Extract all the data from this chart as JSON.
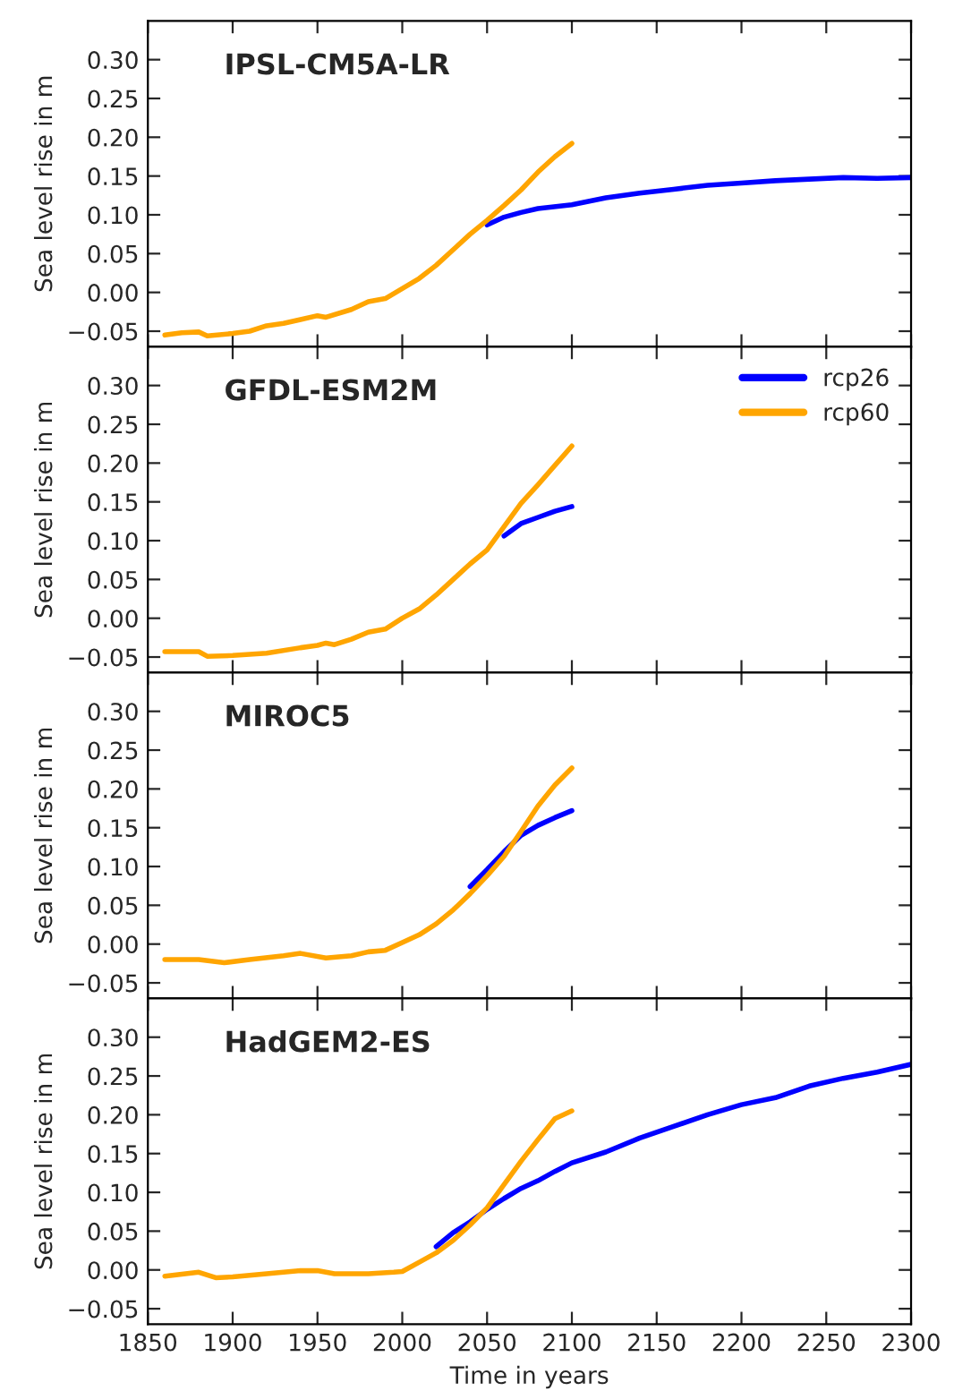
{
  "chart_data": [
    {
      "type": "line",
      "title": "IPSL-CM5A-LR",
      "ylabel": "Sea level rise in m",
      "xlim": [
        1850,
        2300
      ],
      "xticks": [
        1850,
        1900,
        1950,
        2000,
        2050,
        2100,
        2150,
        2200,
        2250,
        2300
      ],
      "ylim": [
        -0.07,
        0.35
      ],
      "yticks": [
        {
          "value": -0.05,
          "label": "−0.05"
        },
        {
          "value": 0,
          "label": "0.00"
        },
        {
          "value": 0.05,
          "label": "0.05"
        },
        {
          "value": 0.1,
          "label": "0.10"
        },
        {
          "value": 0.15,
          "label": "0.15"
        },
        {
          "value": 0.2,
          "label": "0.20"
        },
        {
          "value": 0.25,
          "label": "0.25"
        },
        {
          "value": 0.3,
          "label": "0.30"
        }
      ],
      "tick_labels": "y",
      "grid": false,
      "legend": false,
      "series": [
        {
          "color": "#0000ff",
          "x": [
            2050,
            2060,
            2070,
            2080,
            2100,
            2120,
            2140,
            2160,
            2180,
            2200,
            2220,
            2240,
            2260,
            2280,
            2300
          ],
          "values": [
            0.087,
            0.097,
            0.103,
            0.108,
            0.113,
            0.122,
            0.128,
            0.133,
            0.138,
            0.141,
            0.144,
            0.146,
            0.148,
            0.147,
            0.148
          ]
        },
        {
          "color": "#ffa500",
          "x": [
            1860,
            1870,
            1880,
            1885,
            1900,
            1910,
            1920,
            1930,
            1940,
            1950,
            1955,
            1970,
            1980,
            1990,
            2000,
            2010,
            2020,
            2030,
            2040,
            2050,
            2060,
            2070,
            2080,
            2090,
            2100
          ],
          "values": [
            -0.055,
            -0.052,
            -0.051,
            -0.056,
            -0.053,
            -0.05,
            -0.043,
            -0.04,
            -0.035,
            -0.03,
            -0.032,
            -0.022,
            -0.012,
            -0.008,
            0.005,
            0.018,
            0.035,
            0.055,
            0.075,
            0.093,
            0.112,
            0.132,
            0.155,
            0.175,
            0.192
          ]
        }
      ]
    },
    {
      "type": "line",
      "title": "GFDL-ESM2M",
      "ylabel": "Sea level rise in m",
      "xlim": [
        1850,
        2300
      ],
      "xticks": [
        1850,
        1900,
        1950,
        2000,
        2050,
        2100,
        2150,
        2200,
        2250,
        2300
      ],
      "ylim": [
        -0.07,
        0.35
      ],
      "yticks": [
        {
          "value": -0.05,
          "label": "−0.05"
        },
        {
          "value": 0,
          "label": "0.00"
        },
        {
          "value": 0.05,
          "label": "0.05"
        },
        {
          "value": 0.1,
          "label": "0.10"
        },
        {
          "value": 0.15,
          "label": "0.15"
        },
        {
          "value": 0.2,
          "label": "0.20"
        },
        {
          "value": 0.25,
          "label": "0.25"
        },
        {
          "value": 0.3,
          "label": "0.30"
        }
      ],
      "tick_labels": "y",
      "grid": false,
      "legend": "top right",
      "series": [
        {
          "name": "rcp26",
          "color": "#0000ff",
          "x": [
            2060,
            2070,
            2080,
            2090,
            2100
          ],
          "values": [
            0.106,
            0.122,
            0.13,
            0.138,
            0.144
          ]
        },
        {
          "name": "rcp60",
          "color": "#ffa500",
          "x": [
            1860,
            1880,
            1885,
            1900,
            1920,
            1940,
            1950,
            1955,
            1960,
            1970,
            1980,
            1990,
            2000,
            2010,
            2020,
            2030,
            2040,
            2050,
            2060,
            2070,
            2080,
            2090,
            2100
          ],
          "values": [
            -0.043,
            -0.043,
            -0.049,
            -0.048,
            -0.045,
            -0.038,
            -0.035,
            -0.032,
            -0.034,
            -0.027,
            -0.018,
            -0.014,
            0.0,
            0.012,
            0.03,
            0.05,
            0.07,
            0.088,
            0.118,
            0.148,
            0.172,
            0.197,
            0.222
          ]
        }
      ]
    },
    {
      "type": "line",
      "title": "MIROC5",
      "ylabel": "Sea level rise in m",
      "xlim": [
        1850,
        2300
      ],
      "xticks": [
        1850,
        1900,
        1950,
        2000,
        2050,
        2100,
        2150,
        2200,
        2250,
        2300
      ],
      "ylim": [
        -0.07,
        0.35
      ],
      "yticks": [
        {
          "value": -0.05,
          "label": "−0.05"
        },
        {
          "value": 0,
          "label": "0.00"
        },
        {
          "value": 0.05,
          "label": "0.05"
        },
        {
          "value": 0.1,
          "label": "0.10"
        },
        {
          "value": 0.15,
          "label": "0.15"
        },
        {
          "value": 0.2,
          "label": "0.20"
        },
        {
          "value": 0.25,
          "label": "0.25"
        },
        {
          "value": 0.3,
          "label": "0.30"
        }
      ],
      "tick_labels": "y",
      "grid": false,
      "legend": false,
      "series": [
        {
          "color": "#0000ff",
          "x": [
            2040,
            2050,
            2060,
            2070,
            2080,
            2090,
            2100
          ],
          "values": [
            0.074,
            0.096,
            0.119,
            0.14,
            0.153,
            0.163,
            0.172
          ]
        },
        {
          "color": "#ffa500",
          "x": [
            1860,
            1880,
            1895,
            1910,
            1930,
            1940,
            1955,
            1970,
            1980,
            1990,
            2000,
            2010,
            2020,
            2030,
            2040,
            2050,
            2060,
            2070,
            2080,
            2090,
            2100
          ],
          "values": [
            -0.02,
            -0.02,
            -0.024,
            -0.02,
            -0.015,
            -0.012,
            -0.018,
            -0.015,
            -0.01,
            -0.008,
            0.002,
            0.012,
            0.026,
            0.044,
            0.065,
            0.088,
            0.113,
            0.145,
            0.178,
            0.205,
            0.227
          ]
        }
      ]
    },
    {
      "type": "line",
      "title": "HadGEM2-ES",
      "xlabel": "Time in years",
      "ylabel": "Sea level rise in m",
      "xlim": [
        1850,
        2300
      ],
      "xticks": [
        1850,
        1900,
        1950,
        2000,
        2050,
        2100,
        2150,
        2200,
        2250,
        2300
      ],
      "ylim": [
        -0.07,
        0.35
      ],
      "yticks": [
        {
          "value": -0.05,
          "label": "−0.05"
        },
        {
          "value": 0,
          "label": "0.00"
        },
        {
          "value": 0.05,
          "label": "0.05"
        },
        {
          "value": 0.1,
          "label": "0.10"
        },
        {
          "value": 0.15,
          "label": "0.15"
        },
        {
          "value": 0.2,
          "label": "0.20"
        },
        {
          "value": 0.25,
          "label": "0.25"
        },
        {
          "value": 0.3,
          "label": "0.30"
        }
      ],
      "grid": false,
      "legend": false,
      "series": [
        {
          "color": "#0000ff",
          "x": [
            2020,
            2030,
            2040,
            2050,
            2060,
            2070,
            2080,
            2090,
            2100,
            2120,
            2140,
            2160,
            2180,
            2200,
            2220,
            2240,
            2260,
            2280,
            2300
          ],
          "values": [
            0.03,
            0.048,
            0.062,
            0.078,
            0.092,
            0.105,
            0.115,
            0.127,
            0.138,
            0.152,
            0.17,
            0.185,
            0.2,
            0.213,
            0.222,
            0.237,
            0.247,
            0.255,
            0.265
          ]
        },
        {
          "color": "#ffa500",
          "x": [
            1860,
            1880,
            1890,
            1900,
            1920,
            1940,
            1950,
            1960,
            1980,
            1995,
            2000,
            2010,
            2020,
            2030,
            2040,
            2050,
            2060,
            2070,
            2080,
            2090,
            2100
          ],
          "values": [
            -0.008,
            -0.003,
            -0.01,
            -0.009,
            -0.005,
            -0.001,
            -0.001,
            -0.005,
            -0.005,
            -0.003,
            -0.002,
            0.01,
            0.022,
            0.038,
            0.058,
            0.08,
            0.11,
            0.14,
            0.168,
            0.195,
            0.205
          ]
        }
      ]
    }
  ]
}
